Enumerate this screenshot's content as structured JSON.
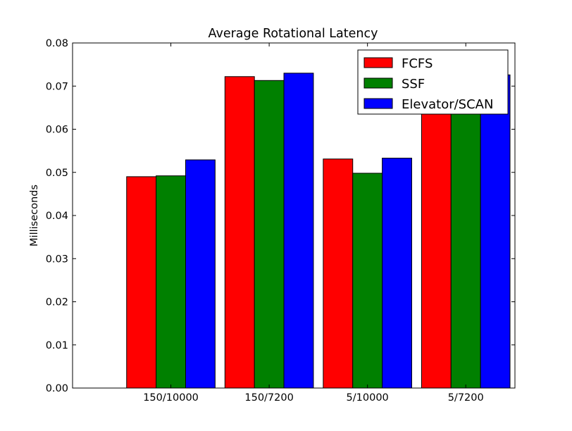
{
  "chart_data": {
    "type": "bar",
    "title": "Average Rotational Latency",
    "xlabel": "",
    "ylabel": "Milliseconds",
    "categories": [
      "150/10000",
      "150/7200",
      "5/10000",
      "5/7200"
    ],
    "series": [
      {
        "name": "FCFS",
        "color": "#ff0000",
        "values": [
          0.049,
          0.0722,
          0.0531,
          0.0725
        ]
      },
      {
        "name": "SSF",
        "color": "#008000",
        "values": [
          0.0492,
          0.0713,
          0.0498,
          0.0717
        ]
      },
      {
        "name": "Elevator/SCAN",
        "color": "#0000ff",
        "values": [
          0.0529,
          0.073,
          0.0533,
          0.0726
        ]
      }
    ],
    "ylim": [
      0,
      0.08
    ],
    "yticks": [
      "0.00",
      "0.01",
      "0.02",
      "0.03",
      "0.04",
      "0.05",
      "0.06",
      "0.07",
      "0.08"
    ],
    "grid": false,
    "legend_position": "top-right"
  }
}
